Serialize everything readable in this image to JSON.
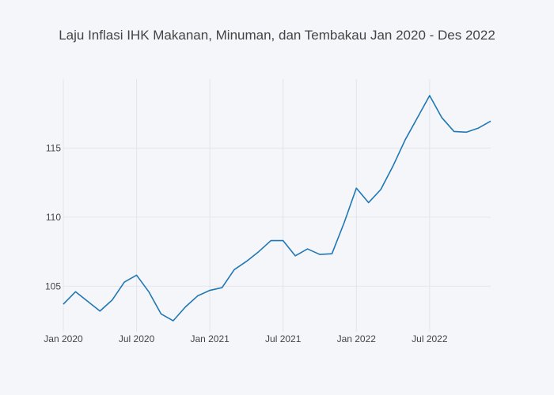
{
  "chart_data": {
    "type": "line",
    "title": "Laju Inflasi IHK Makanan, Minuman, dan Tembakau Jan 2020 - Des 2022",
    "xlabel": "",
    "ylabel": "",
    "x": [
      "2020-01",
      "2020-02",
      "2020-03",
      "2020-04",
      "2020-05",
      "2020-06",
      "2020-07",
      "2020-08",
      "2020-09",
      "2020-10",
      "2020-11",
      "2020-12",
      "2021-01",
      "2021-02",
      "2021-03",
      "2021-04",
      "2021-05",
      "2021-06",
      "2021-07",
      "2021-08",
      "2021-09",
      "2021-10",
      "2021-11",
      "2021-12",
      "2022-01",
      "2022-02",
      "2022-03",
      "2022-04",
      "2022-05",
      "2022-06",
      "2022-07",
      "2022-08",
      "2022-09",
      "2022-10",
      "2022-11",
      "2022-12"
    ],
    "series": [
      {
        "values": [
          103.7,
          104.6,
          103.9,
          103.2,
          104.0,
          105.3,
          105.8,
          104.6,
          103.0,
          102.5,
          103.5,
          104.3,
          104.7,
          104.9,
          106.2,
          106.8,
          107.5,
          108.3,
          108.3,
          107.2,
          107.7,
          107.3,
          107.35,
          109.6,
          112.1,
          111.05,
          112.0,
          113.7,
          115.6,
          117.2,
          118.8,
          117.2,
          116.2,
          116.15,
          116.45,
          116.95
        ]
      }
    ],
    "x_ticks": [
      {
        "label": "Jan 2020",
        "x": "2020-01"
      },
      {
        "label": "Jul 2020",
        "x": "2020-07"
      },
      {
        "label": "Jan 2021",
        "x": "2021-01"
      },
      {
        "label": "Jul 2021",
        "x": "2021-07"
      },
      {
        "label": "Jan 2022",
        "x": "2022-01"
      },
      {
        "label": "Jul 2022",
        "x": "2022-07"
      }
    ],
    "y_ticks": [
      {
        "label": "105",
        "value": 105
      },
      {
        "label": "110",
        "value": 110
      },
      {
        "label": "115",
        "value": 115
      }
    ],
    "ylim": [
      101.7,
      120.0
    ],
    "grid": true,
    "colors": {
      "line": "#1f77b4",
      "background": "#f5f6fa",
      "grid": "#e3e5eb"
    }
  }
}
